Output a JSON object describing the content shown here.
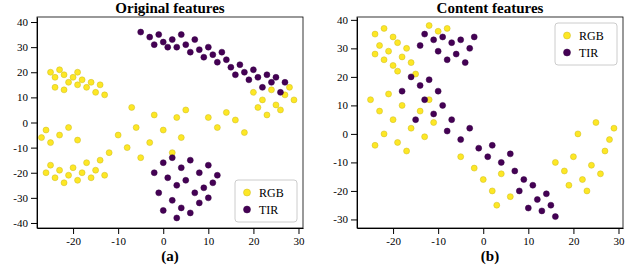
{
  "chart_data": [
    {
      "type": "scatter",
      "title": "Original features",
      "annotations": [
        "(a)"
      ],
      "xlim": [
        -28,
        31
      ],
      "ylim": [
        -42,
        42
      ],
      "xticks": [
        -20,
        -10,
        0,
        10,
        20,
        30
      ],
      "yticks": [
        -40,
        -30,
        -20,
        -10,
        0,
        10,
        20,
        30,
        40
      ],
      "legend": "lower right",
      "series": [
        {
          "name": "RGB",
          "color": "#fde725",
          "marker": "circle",
          "x": [
            -25,
            -24,
            -23,
            -22,
            -21,
            -20,
            -19,
            -18,
            -17,
            -16,
            -15,
            -14,
            -13,
            -24,
            -22,
            -19,
            -26,
            -25,
            -24,
            -23,
            -22,
            -21,
            -20,
            -19,
            -18,
            -17,
            -16,
            -15,
            -14,
            -13,
            -27,
            -26,
            -25,
            -23,
            -21,
            -19,
            -10,
            -8,
            -6,
            -5,
            -3,
            -2,
            0,
            2,
            3,
            5,
            4,
            -7,
            -12,
            20,
            22,
            24,
            25,
            27,
            28,
            26,
            23,
            21,
            29,
            10,
            12,
            14,
            16,
            18
          ],
          "values": [
            20,
            18,
            21,
            19,
            16,
            18,
            15,
            17,
            14,
            16,
            12,
            15,
            11,
            14,
            13,
            20,
            -20,
            -17,
            -22,
            -19,
            -24,
            -21,
            -18,
            -23,
            -20,
            -16,
            -22,
            -19,
            -15,
            -21,
            -6,
            -3,
            -8,
            -5,
            -2,
            -7,
            -5,
            -10,
            -2,
            -14,
            -8,
            3,
            -3,
            -12,
            2,
            5,
            -6,
            6,
            -12,
            12,
            9,
            13,
            7,
            11,
            14,
            5,
            3,
            6,
            9,
            2,
            -2,
            4,
            1,
            -4
          ]
        },
        {
          "name": "TIR",
          "color": "#440154",
          "marker": "circle",
          "x": [
            -5,
            -3,
            -1,
            0,
            2,
            3,
            5,
            6,
            8,
            9,
            11,
            12,
            14,
            15,
            17,
            18,
            20,
            21,
            23,
            24,
            25,
            22,
            19,
            16,
            13,
            10,
            7,
            4,
            1,
            -2,
            26,
            27,
            0,
            2,
            4,
            6,
            8,
            10,
            1,
            3,
            5,
            7,
            9,
            11,
            -1,
            2,
            4,
            6,
            8,
            0,
            3,
            10,
            12,
            -2
          ],
          "values": [
            36,
            34,
            35,
            32,
            33,
            30,
            31,
            28,
            29,
            26,
            27,
            24,
            25,
            22,
            23,
            20,
            21,
            18,
            19,
            16,
            18,
            14,
            17,
            19,
            28,
            30,
            33,
            35,
            30,
            31,
            12,
            16,
            -16,
            -14,
            -18,
            -15,
            -20,
            -17,
            -22,
            -25,
            -23,
            -28,
            -26,
            -24,
            -28,
            -31,
            -34,
            -36,
            -32,
            -35,
            -38,
            -30,
            -21,
            -20
          ]
        }
      ]
    },
    {
      "type": "scatter",
      "title": "Content features",
      "annotations": [
        "(b)"
      ],
      "xlim": [
        -28,
        31
      ],
      "ylim": [
        -33,
        41
      ],
      "xticks": [
        -20,
        -10,
        0,
        10,
        20,
        30
      ],
      "yticks": [
        -30,
        -20,
        -10,
        0,
        10,
        20,
        30,
        40
      ],
      "legend": "upper right",
      "series": [
        {
          "name": "RGB",
          "color": "#fde725",
          "marker": "circle",
          "x": [
            -24,
            -22,
            -20,
            -23,
            -21,
            -19,
            -18,
            -17,
            -22,
            -20,
            -16,
            -19,
            -15,
            -24,
            -12,
            -10,
            -8,
            -25,
            -23,
            -21,
            -20,
            -18,
            -16,
            -14,
            -22,
            -19,
            -13,
            -11,
            -24,
            -17,
            -12,
            -5,
            -2,
            0,
            2,
            4,
            3,
            6,
            16,
            18,
            20,
            22,
            24,
            26,
            19,
            23,
            27,
            28,
            29,
            25,
            21
          ],
          "values": [
            35,
            37,
            34,
            31,
            29,
            32,
            27,
            30,
            26,
            24,
            25,
            22,
            21,
            28,
            38,
            36,
            37,
            12,
            8,
            14,
            5,
            10,
            2,
            8,
            0,
            -3,
            -1,
            4,
            -4,
            -6,
            12,
            -8,
            -12,
            -16,
            -20,
            -14,
            -25,
            -22,
            -10,
            -13,
            -8,
            -16,
            -11,
            -14,
            -18,
            -20,
            -6,
            -2,
            2,
            4,
            0
          ]
        },
        {
          "name": "TIR",
          "color": "#440154",
          "marker": "circle",
          "x": [
            -13,
            -11,
            -9,
            -7,
            -5,
            -3,
            -6,
            -10,
            -14,
            -8,
            -4,
            -2,
            -16,
            -14,
            -12,
            -10,
            -13,
            -9,
            -11,
            -7,
            -8,
            -5,
            -3,
            -1,
            1,
            2,
            4,
            6,
            7,
            9,
            8,
            11,
            12,
            14,
            13,
            15,
            16,
            10,
            -15,
            -18
          ],
          "values": [
            35,
            33,
            34,
            32,
            33,
            30,
            28,
            29,
            31,
            26,
            25,
            34,
            20,
            17,
            19,
            15,
            12,
            10,
            7,
            5,
            1,
            -2,
            2,
            -5,
            -8,
            -4,
            -10,
            -7,
            -13,
            -16,
            -20,
            -18,
            -23,
            -21,
            -27,
            -25,
            -29,
            -26,
            5,
            15
          ]
        }
      ]
    }
  ]
}
